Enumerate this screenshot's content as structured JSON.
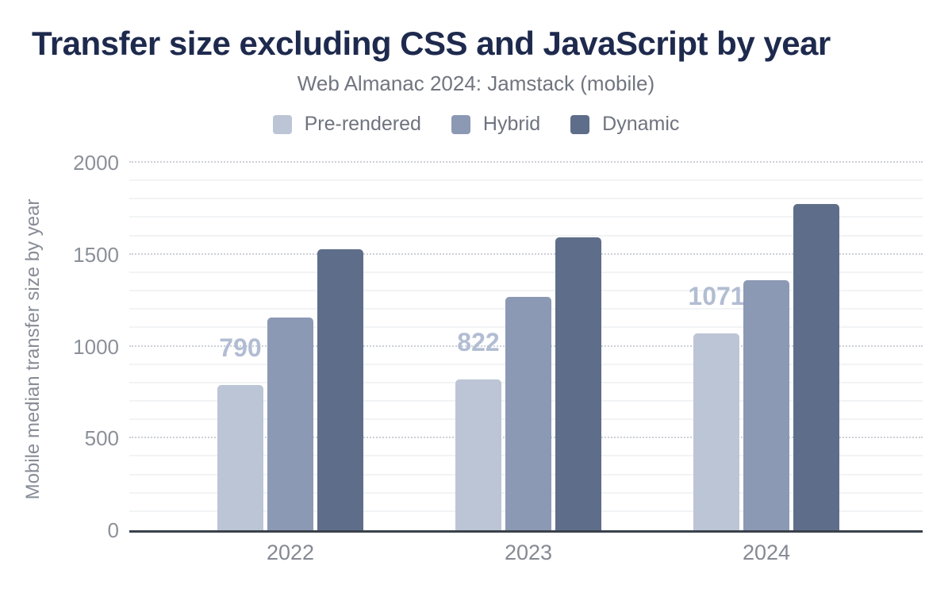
{
  "chart_data": {
    "type": "bar",
    "title": "Transfer size excluding CSS and JavaScript by year",
    "subtitle": "Web Almanac 2024: Jamstack (mobile)",
    "categories": [
      "2022",
      "2023",
      "2024"
    ],
    "series": [
      {
        "name": "Pre-rendered",
        "color": "#bcc5d5",
        "values": [
          790,
          822,
          1071
        ],
        "show_labels": true
      },
      {
        "name": "Hybrid",
        "color": "#8c99b4",
        "values": [
          1160,
          1270,
          1360
        ],
        "show_labels": false
      },
      {
        "name": "Dynamic",
        "color": "#5e6e8a",
        "values": [
          1530,
          1595,
          1775
        ],
        "show_labels": false
      }
    ],
    "xlabel": "",
    "ylabel": "Mobile median transfer size by year",
    "ylim": [
      0,
      2000
    ],
    "yticks": [
      0,
      500,
      1000,
      1500,
      2000
    ],
    "grid": {
      "major_interval": 500,
      "minor_interval": 100,
      "major_style": "dotted",
      "minor_style": "solid"
    },
    "legend_position": "top",
    "data_label_color": "#b2bdd3",
    "axis_line_color": "#3a414b"
  }
}
